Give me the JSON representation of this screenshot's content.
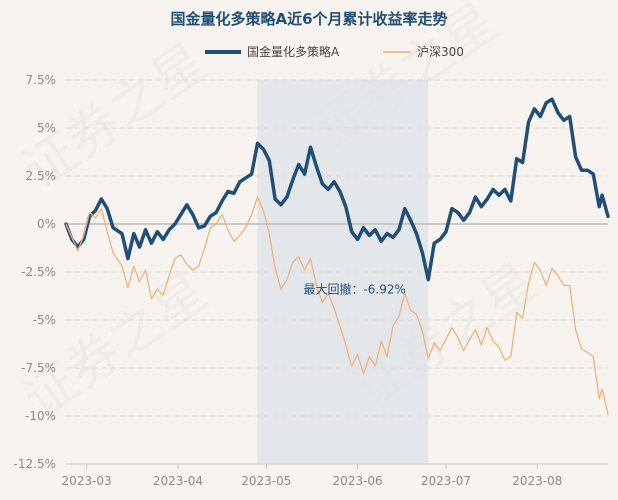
{
  "chart_data": {
    "type": "line",
    "title": "国金量化多策略A近6个月累计收益率走势",
    "watermark": "证券之星",
    "ylim": [
      -12.5,
      7.5
    ],
    "y_ticks": [
      7.5,
      5,
      2.5,
      0,
      -2.5,
      -5,
      -7.5,
      -10,
      -12.5
    ],
    "y_tick_labels": [
      "7.5%",
      "5%",
      "2.5%",
      "0%",
      "-2.5%",
      "-5%",
      "-7.5%",
      "-10%",
      "-12.5%"
    ],
    "x_range": [
      "2023-02-22",
      "2023-08-25"
    ],
    "x_ticks": [
      "2023-03-01",
      "2023-04-01",
      "2023-05-01",
      "2023-06-01",
      "2023-07-01",
      "2023-08-01"
    ],
    "x_tick_labels": [
      "2023-03",
      "2023-04",
      "2023-05",
      "2023-06",
      "2023-07",
      "2023-08"
    ],
    "legend_position": "top-center",
    "grid": "horizontal-dashed",
    "series": [
      {
        "name": "国金量化多策略A",
        "color": "#1f4e79",
        "points": [
          [
            "2023-02-22",
            0.0
          ],
          [
            "2023-02-24",
            -0.8
          ],
          [
            "2023-02-26",
            -1.2
          ],
          [
            "2023-02-28",
            -0.8
          ],
          [
            "2023-03-02",
            0.4
          ],
          [
            "2023-03-04",
            0.7
          ],
          [
            "2023-03-06",
            1.3
          ],
          [
            "2023-03-08",
            0.8
          ],
          [
            "2023-03-10",
            -0.2
          ],
          [
            "2023-03-13",
            -0.5
          ],
          [
            "2023-03-15",
            -1.8
          ],
          [
            "2023-03-17",
            -0.5
          ],
          [
            "2023-03-19",
            -1.2
          ],
          [
            "2023-03-21",
            -0.3
          ],
          [
            "2023-03-23",
            -1.0
          ],
          [
            "2023-03-25",
            -0.4
          ],
          [
            "2023-03-27",
            -0.8
          ],
          [
            "2023-03-29",
            -0.3
          ],
          [
            "2023-03-31",
            0.0
          ],
          [
            "2023-04-02",
            0.5
          ],
          [
            "2023-04-04",
            1.0
          ],
          [
            "2023-04-06",
            0.5
          ],
          [
            "2023-04-08",
            -0.2
          ],
          [
            "2023-04-10",
            -0.1
          ],
          [
            "2023-04-12",
            0.4
          ],
          [
            "2023-04-14",
            0.6
          ],
          [
            "2023-04-16",
            1.2
          ],
          [
            "2023-04-18",
            1.7
          ],
          [
            "2023-04-20",
            1.6
          ],
          [
            "2023-04-22",
            2.2
          ],
          [
            "2023-04-24",
            2.4
          ],
          [
            "2023-04-26",
            2.6
          ],
          [
            "2023-04-28",
            4.2
          ],
          [
            "2023-04-30",
            3.9
          ],
          [
            "2023-05-02",
            3.3
          ],
          [
            "2023-05-04",
            1.3
          ],
          [
            "2023-05-06",
            1.0
          ],
          [
            "2023-05-08",
            1.4
          ],
          [
            "2023-05-10",
            2.3
          ],
          [
            "2023-05-12",
            3.1
          ],
          [
            "2023-05-14",
            2.6
          ],
          [
            "2023-05-16",
            4.0
          ],
          [
            "2023-05-18",
            3.0
          ],
          [
            "2023-05-20",
            2.1
          ],
          [
            "2023-05-22",
            1.8
          ],
          [
            "2023-05-24",
            2.2
          ],
          [
            "2023-05-26",
            1.7
          ],
          [
            "2023-05-28",
            0.9
          ],
          [
            "2023-05-30",
            -0.4
          ],
          [
            "2023-06-01",
            -0.8
          ],
          [
            "2023-06-03",
            -0.2
          ],
          [
            "2023-06-05",
            -0.6
          ],
          [
            "2023-06-07",
            -0.3
          ],
          [
            "2023-06-09",
            -0.9
          ],
          [
            "2023-06-11",
            -0.5
          ],
          [
            "2023-06-13",
            -0.7
          ],
          [
            "2023-06-15",
            -0.3
          ],
          [
            "2023-06-17",
            0.8
          ],
          [
            "2023-06-19",
            0.2
          ],
          [
            "2023-06-21",
            -0.5
          ],
          [
            "2023-06-23",
            -1.5
          ],
          [
            "2023-06-25",
            -2.9
          ],
          [
            "2023-06-27",
            -1.0
          ],
          [
            "2023-06-29",
            -0.8
          ],
          [
            "2023-07-01",
            -0.4
          ],
          [
            "2023-07-03",
            0.8
          ],
          [
            "2023-07-05",
            0.6
          ],
          [
            "2023-07-07",
            0.2
          ],
          [
            "2023-07-09",
            0.6
          ],
          [
            "2023-07-11",
            1.4
          ],
          [
            "2023-07-13",
            0.9
          ],
          [
            "2023-07-15",
            1.3
          ],
          [
            "2023-07-17",
            1.8
          ],
          [
            "2023-07-19",
            1.5
          ],
          [
            "2023-07-21",
            1.8
          ],
          [
            "2023-07-23",
            1.2
          ],
          [
            "2023-07-25",
            3.4
          ],
          [
            "2023-07-27",
            3.2
          ],
          [
            "2023-07-29",
            5.3
          ],
          [
            "2023-07-31",
            6.0
          ],
          [
            "2023-08-02",
            5.6
          ],
          [
            "2023-08-04",
            6.3
          ],
          [
            "2023-08-06",
            6.5
          ],
          [
            "2023-08-08",
            5.8
          ],
          [
            "2023-08-10",
            5.4
          ],
          [
            "2023-08-12",
            5.6
          ],
          [
            "2023-08-14",
            3.5
          ],
          [
            "2023-08-16",
            2.8
          ],
          [
            "2023-08-18",
            2.8
          ],
          [
            "2023-08-20",
            2.6
          ],
          [
            "2023-08-22",
            0.9
          ],
          [
            "2023-08-23",
            1.5
          ],
          [
            "2023-08-25",
            0.4
          ]
        ]
      },
      {
        "name": "沪深300",
        "color": "#f0b27a",
        "points": [
          [
            "2023-02-22",
            0.0
          ],
          [
            "2023-02-24",
            -0.7
          ],
          [
            "2023-02-26",
            -1.4
          ],
          [
            "2023-02-28",
            -0.6
          ],
          [
            "2023-03-02",
            0.6
          ],
          [
            "2023-03-04",
            0.3
          ],
          [
            "2023-03-06",
            0.8
          ],
          [
            "2023-03-08",
            -0.4
          ],
          [
            "2023-03-10",
            -1.5
          ],
          [
            "2023-03-13",
            -2.2
          ],
          [
            "2023-03-15",
            -3.3
          ],
          [
            "2023-03-17",
            -2.2
          ],
          [
            "2023-03-19",
            -3.0
          ],
          [
            "2023-03-21",
            -2.4
          ],
          [
            "2023-03-23",
            -3.9
          ],
          [
            "2023-03-25",
            -3.4
          ],
          [
            "2023-03-27",
            -3.7
          ],
          [
            "2023-03-29",
            -2.7
          ],
          [
            "2023-03-31",
            -1.8
          ],
          [
            "2023-04-02",
            -1.6
          ],
          [
            "2023-04-04",
            -2.1
          ],
          [
            "2023-04-06",
            -2.4
          ],
          [
            "2023-04-08",
            -2.2
          ],
          [
            "2023-04-10",
            -1.3
          ],
          [
            "2023-04-12",
            -0.2
          ],
          [
            "2023-04-14",
            0.0
          ],
          [
            "2023-04-16",
            0.5
          ],
          [
            "2023-04-18",
            -0.3
          ],
          [
            "2023-04-20",
            -0.9
          ],
          [
            "2023-04-22",
            -0.6
          ],
          [
            "2023-04-24",
            -0.2
          ],
          [
            "2023-04-26",
            0.5
          ],
          [
            "2023-04-28",
            1.4
          ],
          [
            "2023-04-30",
            0.7
          ],
          [
            "2023-05-02",
            -0.5
          ],
          [
            "2023-05-04",
            -2.3
          ],
          [
            "2023-05-06",
            -3.4
          ],
          [
            "2023-05-08",
            -2.9
          ],
          [
            "2023-05-10",
            -2.0
          ],
          [
            "2023-05-12",
            -1.7
          ],
          [
            "2023-05-14",
            -2.4
          ],
          [
            "2023-05-16",
            -1.8
          ],
          [
            "2023-05-18",
            -3.2
          ],
          [
            "2023-05-20",
            -4.1
          ],
          [
            "2023-05-22",
            -3.6
          ],
          [
            "2023-05-24",
            -4.4
          ],
          [
            "2023-05-26",
            -5.3
          ],
          [
            "2023-05-28",
            -6.3
          ],
          [
            "2023-05-30",
            -7.4
          ],
          [
            "2023-06-01",
            -6.8
          ],
          [
            "2023-06-03",
            -7.8
          ],
          [
            "2023-06-05",
            -6.9
          ],
          [
            "2023-06-07",
            -7.4
          ],
          [
            "2023-06-09",
            -6.1
          ],
          [
            "2023-06-11",
            -6.9
          ],
          [
            "2023-06-13",
            -5.3
          ],
          [
            "2023-06-15",
            -4.8
          ],
          [
            "2023-06-17",
            -3.6
          ],
          [
            "2023-06-19",
            -4.5
          ],
          [
            "2023-06-21",
            -4.7
          ],
          [
            "2023-06-23",
            -5.6
          ],
          [
            "2023-06-25",
            -7.0
          ],
          [
            "2023-06-27",
            -6.2
          ],
          [
            "2023-06-29",
            -6.6
          ],
          [
            "2023-07-01",
            -6.0
          ],
          [
            "2023-07-03",
            -5.4
          ],
          [
            "2023-07-05",
            -5.9
          ],
          [
            "2023-07-07",
            -6.6
          ],
          [
            "2023-07-09",
            -6.0
          ],
          [
            "2023-07-11",
            -5.5
          ],
          [
            "2023-07-13",
            -6.3
          ],
          [
            "2023-07-15",
            -5.4
          ],
          [
            "2023-07-17",
            -6.1
          ],
          [
            "2023-07-19",
            -6.4
          ],
          [
            "2023-07-21",
            -7.1
          ],
          [
            "2023-07-23",
            -6.9
          ],
          [
            "2023-07-25",
            -4.6
          ],
          [
            "2023-07-27",
            -4.9
          ],
          [
            "2023-07-29",
            -3.1
          ],
          [
            "2023-07-31",
            -2.0
          ],
          [
            "2023-08-02",
            -2.4
          ],
          [
            "2023-08-04",
            -3.2
          ],
          [
            "2023-08-06",
            -2.3
          ],
          [
            "2023-08-08",
            -2.7
          ],
          [
            "2023-08-10",
            -3.2
          ],
          [
            "2023-08-12",
            -3.2
          ],
          [
            "2023-08-14",
            -5.5
          ],
          [
            "2023-08-16",
            -6.5
          ],
          [
            "2023-08-18",
            -6.7
          ],
          [
            "2023-08-20",
            -6.9
          ],
          [
            "2023-08-22",
            -9.1
          ],
          [
            "2023-08-23",
            -8.6
          ],
          [
            "2023-08-25",
            -9.9
          ]
        ]
      }
    ],
    "shaded_region": {
      "x_start": "2023-04-28",
      "x_end": "2023-06-25",
      "color": "#dde3e8"
    },
    "annotation": {
      "text": "最大回撤：-6.92%",
      "at_x": "2023-05-31",
      "at_y": -3.4
    }
  }
}
